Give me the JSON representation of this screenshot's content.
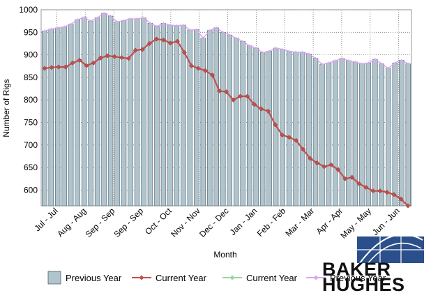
{
  "chart_data": {
    "type": "bar",
    "xlabel": "Month",
    "ylabel": "Number of Rigs",
    "ylim": [
      565,
      1000
    ],
    "y_ticks": [
      1000,
      950,
      900,
      850,
      800,
      750,
      700,
      650,
      600
    ],
    "x_tick_labels": [
      "Jul - Jul",
      "Aug - Aug",
      "Sep - Sep",
      "Sep - Sep",
      "Oct - Oct",
      "Nov - Nov",
      "Dec - Dec",
      "Jan - Jan",
      "Feb - Feb",
      "Mar - Mar",
      "Apr - Apr",
      "May - May",
      "Jun - Jun"
    ],
    "grid": true,
    "legend_position": "bottom",
    "series": [
      {
        "name": "Previous Year",
        "kind": "bar",
        "color": "#b0c4ce",
        "values": [
          953,
          957,
          960,
          962,
          968,
          978,
          983,
          975,
          982,
          992,
          986,
          973,
          976,
          980,
          980,
          982,
          970,
          963,
          970,
          966,
          965,
          966,
          955,
          956,
          937,
          954,
          960,
          950,
          944,
          937,
          930,
          920,
          915,
          905,
          908,
          915,
          912,
          908,
          906,
          906,
          902,
          892,
          879,
          882,
          887,
          892,
          887,
          884,
          880,
          882,
          890,
          880,
          870,
          882,
          888,
          880
        ]
      },
      {
        "name": "Current Year",
        "kind": "line",
        "color": "#c0504d",
        "values": [
          870,
          872,
          873,
          873,
          882,
          888,
          876,
          882,
          893,
          898,
          896,
          894,
          892,
          910,
          912,
          925,
          935,
          933,
          926,
          930,
          905,
          876,
          870,
          865,
          855,
          820,
          818,
          800,
          808,
          808,
          790,
          780,
          775,
          745,
          722,
          717,
          710,
          690,
          670,
          660,
          652,
          656,
          645,
          625,
          628,
          614,
          606,
          598,
          598,
          595,
          590,
          580,
          565
        ]
      },
      {
        "name": "Current Year",
        "kind": "line",
        "color": "#9bd49b",
        "values": []
      },
      {
        "name": "Previous Year",
        "kind": "line",
        "color": "#d9a5ef",
        "values": [
          953,
          957,
          960,
          962,
          968,
          978,
          983,
          975,
          982,
          992,
          986,
          973,
          976,
          980,
          980,
          982,
          970,
          963,
          970,
          966,
          965,
          966,
          955,
          956,
          937,
          954,
          960,
          950,
          944,
          937,
          930,
          920,
          915,
          905,
          908,
          915,
          912,
          908,
          906,
          906,
          902,
          892,
          879,
          882,
          887,
          892,
          887,
          884,
          880,
          882,
          890,
          880,
          870,
          882,
          888,
          880
        ]
      }
    ]
  },
  "logo": {
    "line1": "BAKER",
    "line2": "HUGHES"
  }
}
